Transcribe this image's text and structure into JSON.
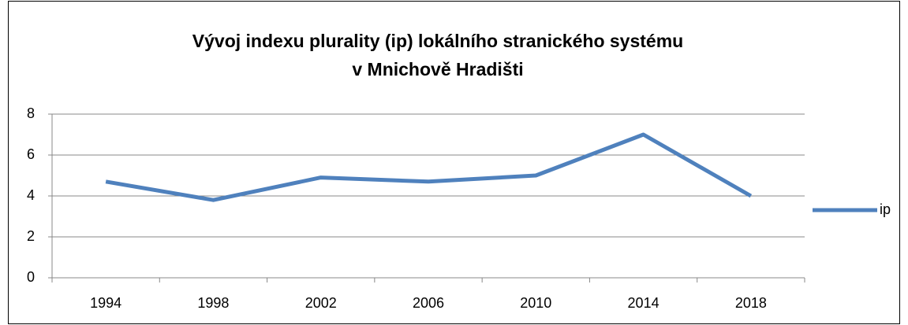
{
  "chart_data": {
    "type": "line",
    "title": [
      "Vývoj indexu plurality  (ip) lokálního stranického systému",
      "v Mnichově Hradišti"
    ],
    "categories": [
      "1994",
      "1998",
      "2002",
      "2006",
      "2010",
      "2014",
      "2018"
    ],
    "series": [
      {
        "name": "ip",
        "color": "#4f81bd",
        "values": [
          4.7,
          3.8,
          4.9,
          4.7,
          5.0,
          7.0,
          4.0
        ]
      }
    ],
    "ylim": [
      0,
      8
    ],
    "yticks": [
      0,
      2,
      4,
      6,
      8
    ],
    "grid": true,
    "legend": "right"
  }
}
